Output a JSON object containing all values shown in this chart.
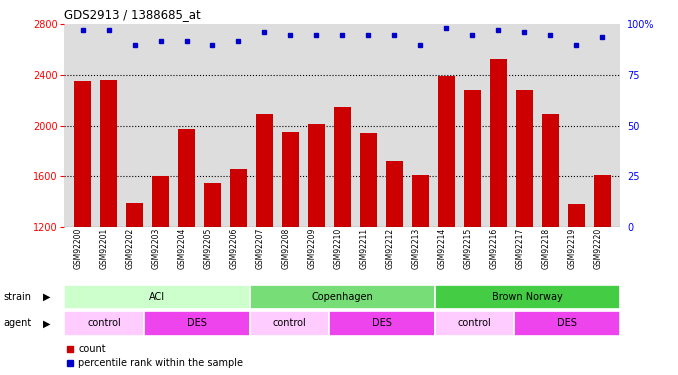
{
  "title": "GDS2913 / 1388685_at",
  "samples": [
    "GSM92200",
    "GSM92201",
    "GSM92202",
    "GSM92203",
    "GSM92204",
    "GSM92205",
    "GSM92206",
    "GSM92207",
    "GSM92208",
    "GSM92209",
    "GSM92210",
    "GSM92211",
    "GSM92212",
    "GSM92213",
    "GSM92214",
    "GSM92215",
    "GSM92216",
    "GSM92217",
    "GSM92218",
    "GSM92219",
    "GSM92220"
  ],
  "counts": [
    2350,
    2360,
    1390,
    1600,
    1970,
    1550,
    1660,
    2090,
    1950,
    2010,
    2150,
    1940,
    1720,
    1610,
    2390,
    2280,
    2530,
    2280,
    2090,
    1380,
    1610
  ],
  "percentile_ranks": [
    97,
    97,
    90,
    92,
    92,
    90,
    92,
    96,
    95,
    95,
    95,
    95,
    95,
    90,
    98,
    95,
    97,
    96,
    95,
    90,
    94
  ],
  "bar_color": "#cc0000",
  "dot_color": "#0000cc",
  "ylim_left": [
    1200,
    2800
  ],
  "ylim_right": [
    0,
    100
  ],
  "yticks_left": [
    1200,
    1600,
    2000,
    2400,
    2800
  ],
  "yticks_right": [
    0,
    25,
    50,
    75,
    100
  ],
  "grid_lines": [
    1600,
    2000,
    2400
  ],
  "strain_groups": [
    {
      "label": "ACI",
      "start": 0,
      "end": 6,
      "color": "#ccffcc"
    },
    {
      "label": "Copenhagen",
      "start": 7,
      "end": 13,
      "color": "#77dd77"
    },
    {
      "label": "Brown Norway",
      "start": 14,
      "end": 20,
      "color": "#44cc44"
    }
  ],
  "agent_groups": [
    {
      "label": "control",
      "start": 0,
      "end": 2,
      "color": "#ffccff"
    },
    {
      "label": "DES",
      "start": 3,
      "end": 6,
      "color": "#ee44ee"
    },
    {
      "label": "control",
      "start": 7,
      "end": 9,
      "color": "#ffccff"
    },
    {
      "label": "DES",
      "start": 10,
      "end": 13,
      "color": "#ee44ee"
    },
    {
      "label": "control",
      "start": 14,
      "end": 16,
      "color": "#ffccff"
    },
    {
      "label": "DES",
      "start": 17,
      "end": 20,
      "color": "#ee44ee"
    }
  ],
  "axis_bg_color": "#dddddd",
  "fig_width": 6.78,
  "fig_height": 3.75,
  "fig_dpi": 100
}
